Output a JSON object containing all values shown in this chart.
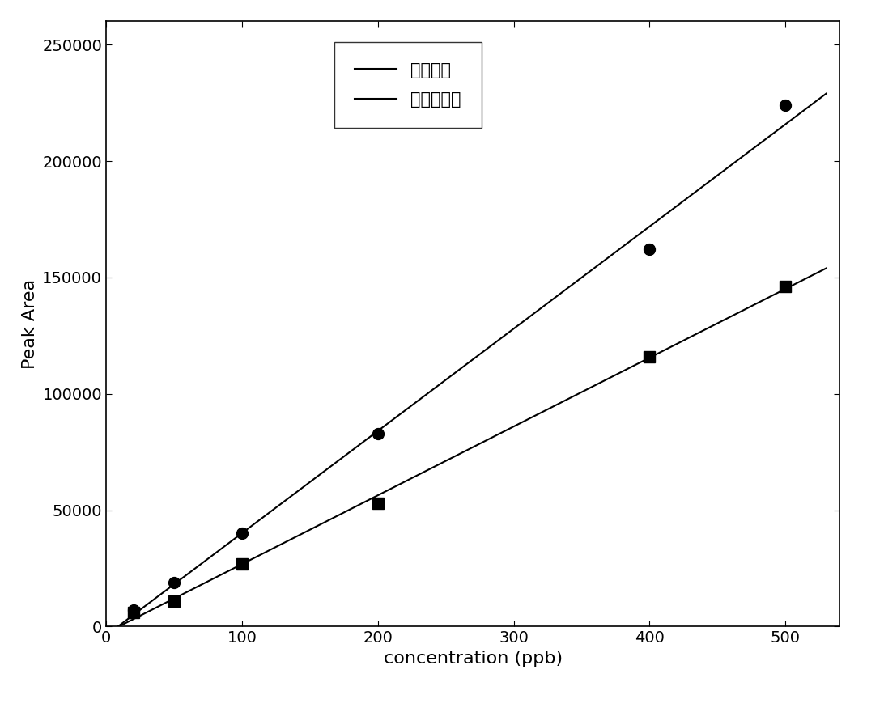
{
  "series1_name": "基质加标",
  "series2_name": "纯溶剂加标",
  "series1_x": [
    20,
    50,
    100,
    200,
    400,
    500
  ],
  "series1_y": [
    7000,
    19000,
    40000,
    83000,
    162000,
    224000
  ],
  "series2_x": [
    20,
    50,
    100,
    200,
    400,
    500
  ],
  "series2_y": [
    6000,
    11000,
    27000,
    53000,
    116000,
    146000
  ],
  "xlabel": "concentration (ppb)",
  "ylabel": "Peak Area",
  "xlim": [
    0,
    540
  ],
  "ylim": [
    0,
    260000
  ],
  "yticks": [
    0,
    50000,
    100000,
    150000,
    200000,
    250000
  ],
  "xticks": [
    0,
    100,
    200,
    300,
    400,
    500
  ],
  "line_color": "#000000",
  "marker1": "o",
  "marker2": "s",
  "markersize": 10,
  "linewidth": 1.5,
  "label_fontsize": 16,
  "tick_fontsize": 14,
  "legend_fontsize": 15
}
